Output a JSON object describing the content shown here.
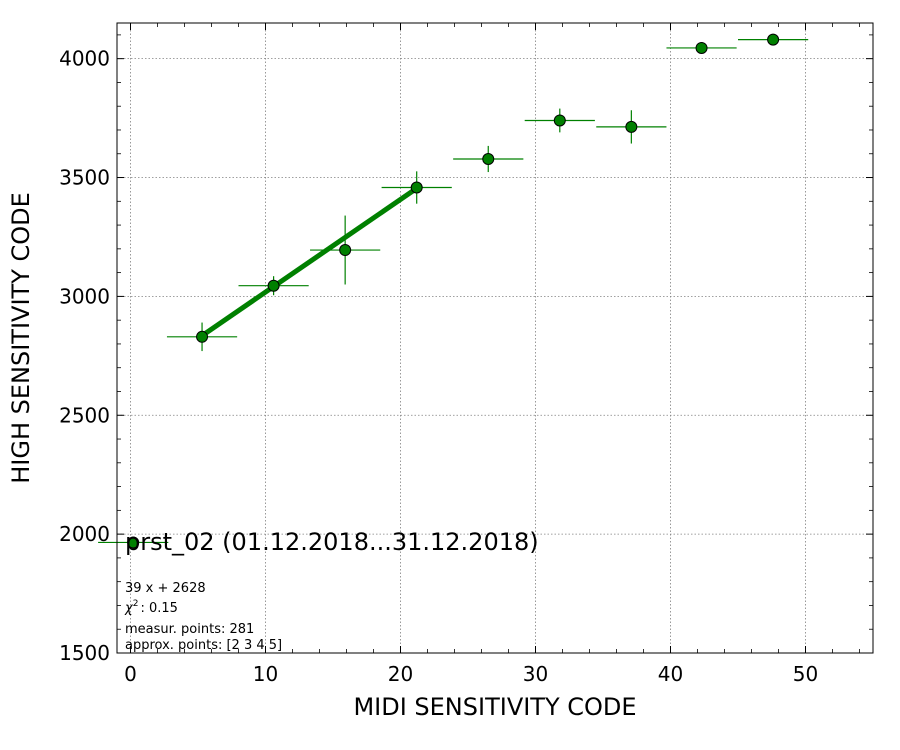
{
  "chart_data": {
    "type": "scatter",
    "xlabel": "MIDI SENSITIVITY CODE",
    "ylabel": "HIGH SENSITIVITY CODE",
    "xlim": [
      -1,
      55
    ],
    "ylim": [
      1500,
      4150
    ],
    "xticks": [
      0,
      10,
      20,
      30,
      40,
      50
    ],
    "yticks": [
      1500,
      2000,
      2500,
      3000,
      3500,
      4000
    ],
    "grid": true,
    "colors": {
      "points": "#008000",
      "errorbars": "#008000",
      "fit": "#008000",
      "grid": "#808080"
    },
    "points": [
      {
        "x": 0.2,
        "y": 1965,
        "xerr": 2.6,
        "yerr": 0
      },
      {
        "x": 5.3,
        "y": 2830,
        "xerr": 2.6,
        "yerr": 60
      },
      {
        "x": 10.6,
        "y": 3045,
        "xerr": 2.6,
        "yerr": 40
      },
      {
        "x": 15.9,
        "y": 3195,
        "xerr": 2.6,
        "yerr": 145
      },
      {
        "x": 21.2,
        "y": 3458,
        "xerr": 2.6,
        "yerr": 68
      },
      {
        "x": 26.5,
        "y": 3578,
        "xerr": 2.6,
        "yerr": 55
      },
      {
        "x": 31.8,
        "y": 3740,
        "xerr": 2.6,
        "yerr": 50
      },
      {
        "x": 37.1,
        "y": 3713,
        "xerr": 2.6,
        "yerr": 70
      },
      {
        "x": 42.3,
        "y": 4045,
        "xerr": 2.6,
        "yerr": 0
      },
      {
        "x": 47.6,
        "y": 4080,
        "xerr": 2.6,
        "yerr": 0
      }
    ],
    "fit": {
      "slope": 39,
      "intercept": 2628,
      "x_range": [
        5.3,
        21.2
      ]
    },
    "annotation": {
      "title": "prst_02 (01.12.2018...31.12.2018)",
      "fit_label": "39 x + 2628",
      "chi2_symbol": "χ",
      "chi2_exp": "2",
      "chi2_value": ": 0.15",
      "measur_points": "measur. points: 281",
      "approx_points": "approx. points: [2 3 4 5]"
    }
  }
}
